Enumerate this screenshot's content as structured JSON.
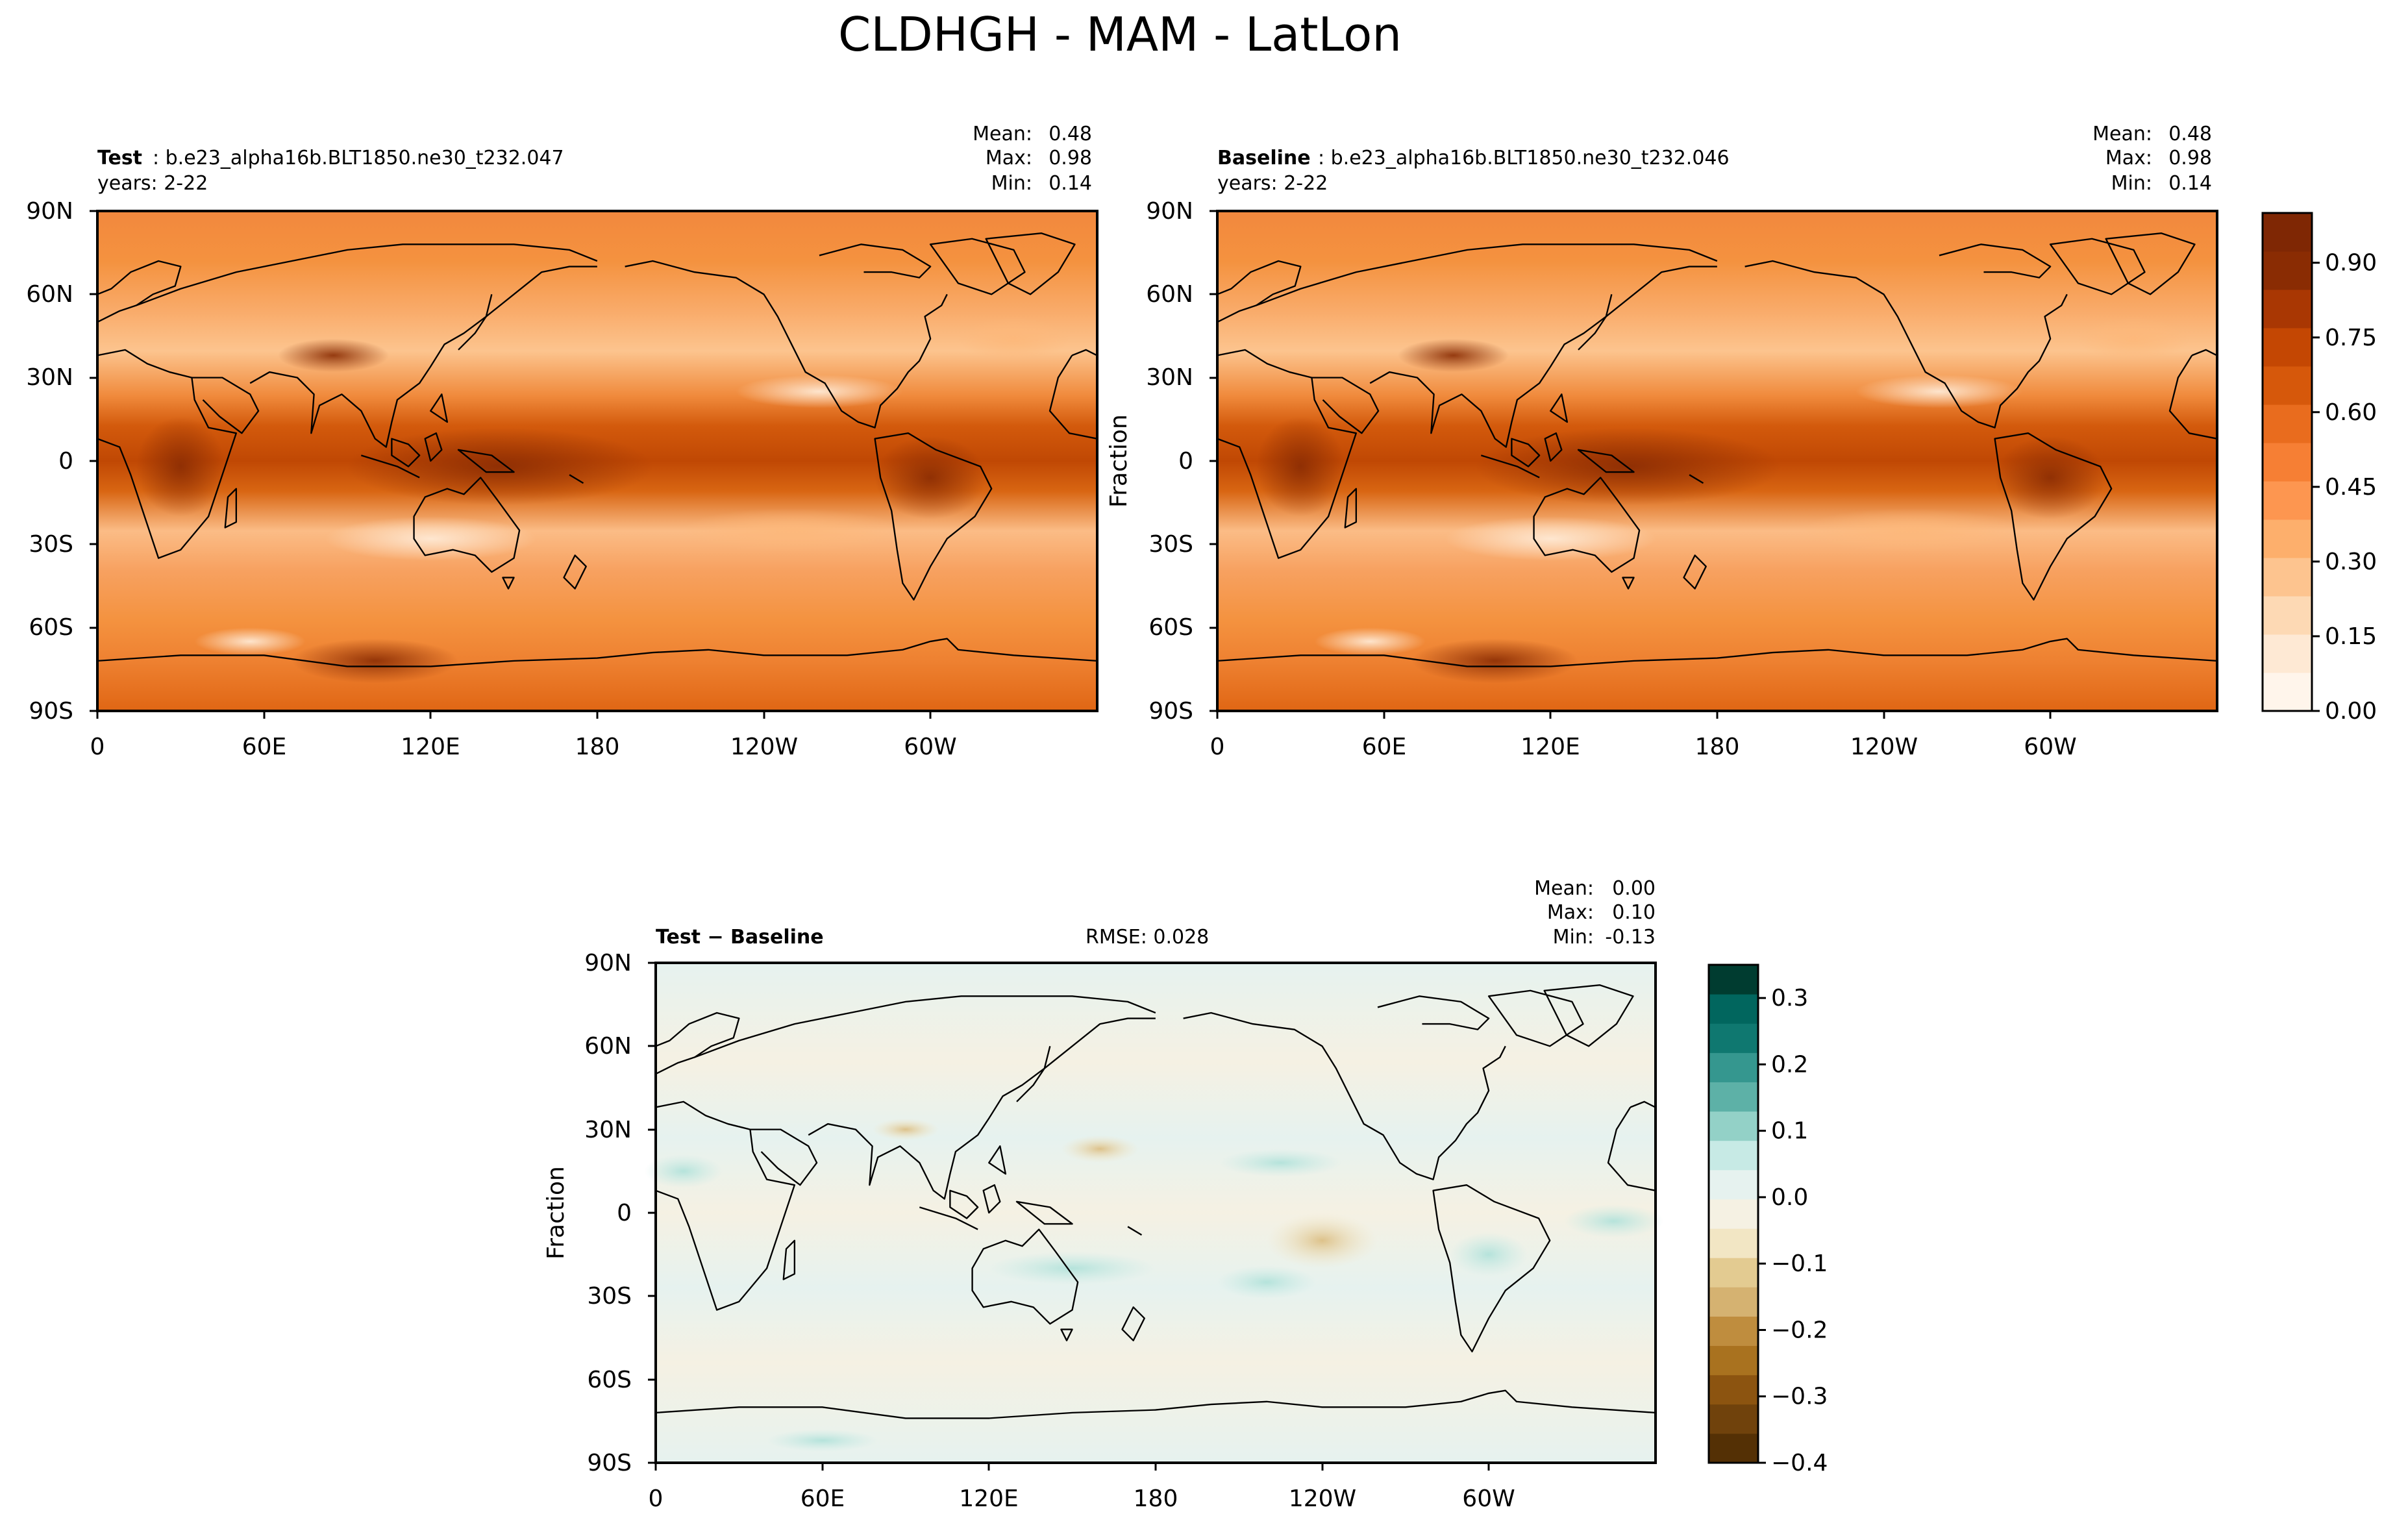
{
  "title": "CLDHGH - MAM - LatLon",
  "panels": [
    {
      "label_bold": "Test",
      "label_rest": ": b.e23_alpha16b.BLT1850.ne30_t232.047",
      "years": "years: 2-22",
      "stats_labels": [
        "Mean:",
        "Max:",
        "Min:"
      ],
      "stats_values": [
        "0.48",
        "0.98",
        "0.14"
      ]
    },
    {
      "label_bold": "Baseline",
      "label_rest": ": b.e23_alpha16b.BLT1850.ne30_t232.046",
      "years": "years: 2-22",
      "stats_labels": [
        "Mean:",
        "Max:",
        "Min:"
      ],
      "stats_values": [
        "0.48",
        "0.98",
        "0.14"
      ],
      "ylabel": "Fraction"
    },
    {
      "label_bold": "Test − Baseline",
      "rmse": "RMSE: 0.028",
      "stats_labels": [
        "Mean:",
        "Max:",
        "Min:"
      ],
      "stats_values": [
        "0.00",
        "0.10",
        "-0.13"
      ],
      "ylabel": "Fraction"
    }
  ],
  "lat_ticks": [
    "90N",
    "60N",
    "30N",
    "0",
    "30S",
    "60S",
    "90S"
  ],
  "lon_ticks": [
    "0",
    "60E",
    "120E",
    "180",
    "120W",
    "60W"
  ],
  "chart_data": [
    {
      "type": "heatmap",
      "name": "Test",
      "variable": "CLDHGH",
      "xticks": [
        "0",
        "60E",
        "120E",
        "180",
        "120W",
        "60W"
      ],
      "yticks": [
        "90N",
        "60N",
        "30N",
        "0",
        "30S",
        "60S",
        "90S"
      ],
      "mean": 0.48,
      "max": 0.98,
      "min": 0.14,
      "colorbar": {
        "vmin": 0.0,
        "vmax": 1.0,
        "levels": 20,
        "ticks": [
          "0.00",
          "0.15",
          "0.30",
          "0.45",
          "0.60",
          "0.75",
          "0.90"
        ],
        "colors": [
          "#fff5eb",
          "#fee9d4",
          "#fdd9b4",
          "#fdc48f",
          "#fdaf6c",
          "#fd9650",
          "#f67f34",
          "#e96c1e",
          "#d6580b",
          "#c44703",
          "#a93703",
          "#8a2c03",
          "#7f2704"
        ]
      }
    },
    {
      "type": "heatmap",
      "name": "Baseline",
      "variable": "CLDHGH",
      "xticks": [
        "0",
        "60E",
        "120E",
        "180",
        "120W",
        "60W"
      ],
      "yticks": [
        "90N",
        "60N",
        "30N",
        "0",
        "30S",
        "60S",
        "90S"
      ],
      "mean": 0.48,
      "max": 0.98,
      "min": 0.14
    },
    {
      "type": "heatmap",
      "name": "Test − Baseline",
      "xticks": [
        "0",
        "60E",
        "120E",
        "180",
        "120W",
        "60W"
      ],
      "yticks": [
        "90N",
        "60N",
        "30N",
        "0",
        "30S",
        "60S",
        "90S"
      ],
      "mean": 0.0,
      "max": 0.1,
      "min": -0.13,
      "rmse": 0.028,
      "colorbar": {
        "vmin": -0.4,
        "vmax": 0.35,
        "ticks": [
          "0.3",
          "0.2",
          "0.1",
          "0.0",
          "−0.1",
          "−0.2",
          "−0.3",
          "−0.4"
        ],
        "colors": [
          "#543005",
          "#70420c",
          "#8c5410",
          "#a9721f",
          "#bf8d3e",
          "#d5b271",
          "#e3cb91",
          "#f2e6c4",
          "#f5f1e3",
          "#e6f2ef",
          "#c7eae5",
          "#93d1c7",
          "#5db1a7",
          "#35978f",
          "#0f7870",
          "#01665e",
          "#003c30"
        ]
      }
    }
  ]
}
